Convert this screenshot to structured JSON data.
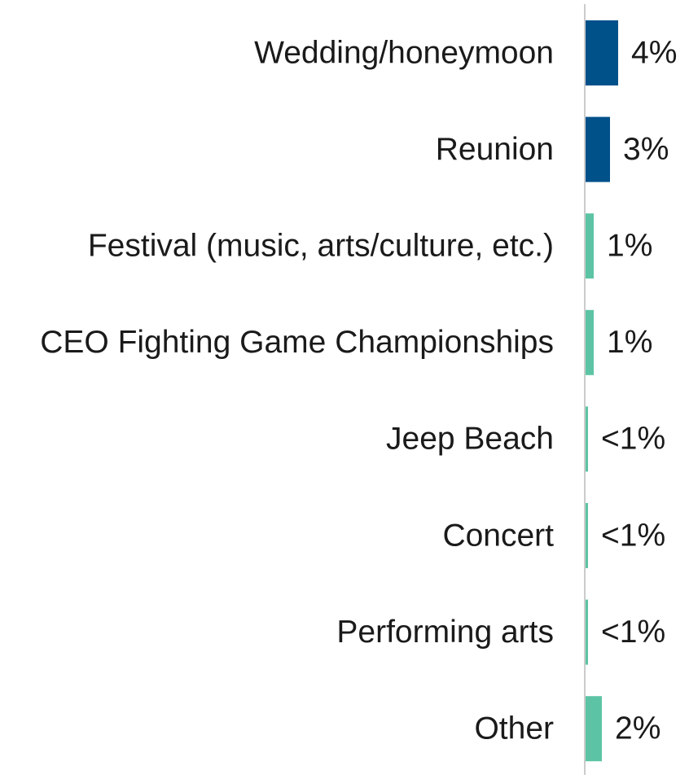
{
  "chart_data": {
    "type": "hbar",
    "categories": [
      "Wedding/honeymoon",
      "Reunion",
      "Festival (music, arts/culture, etc.)",
      "CEO Fighting Game Championships",
      "Jeep Beach",
      "Concert",
      "Performing arts",
      "Other"
    ],
    "values": [
      4,
      3,
      1,
      1,
      0.3,
      0.3,
      0.3,
      2
    ],
    "value_labels": [
      "4%",
      "3%",
      "1%",
      "1%",
      "<1%",
      "<1%",
      "<1%",
      "2%"
    ],
    "colors": [
      "#00508a",
      "#00508a",
      "#5cc4a4",
      "#5cc4a4",
      "#5cc4a4",
      "#5cc4a4",
      "#5cc4a4",
      "#5cc4a4"
    ]
  }
}
